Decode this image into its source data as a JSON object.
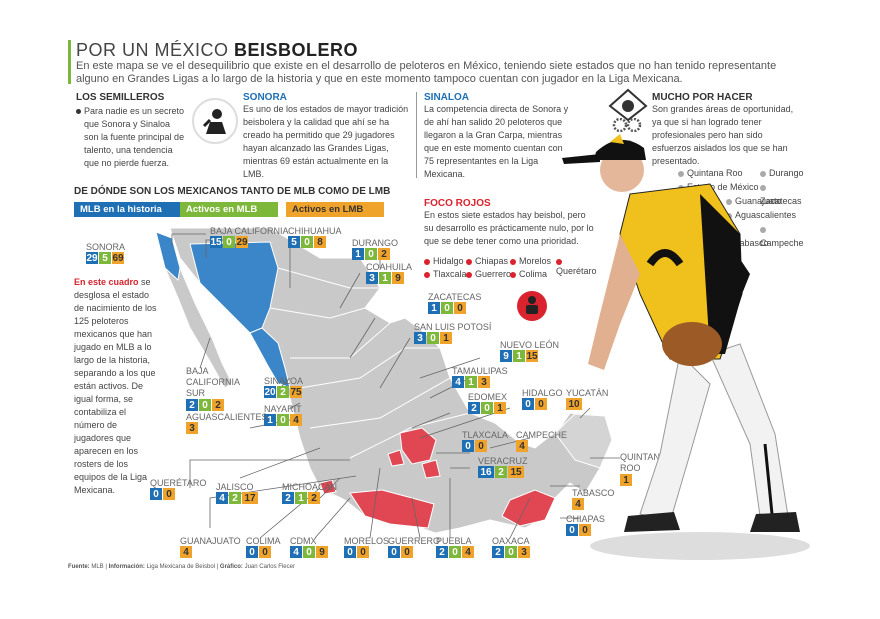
{
  "title": {
    "prefix": "POR UN MÉXICO ",
    "bold": "BEISBOLERO"
  },
  "lead": "En este mapa se ve el desequilibrio que existe en el desarrollo de peloteros en México, teniendo siete estados que no han tenido representante alguno en Grandes Ligas a lo largo de la historia y que en este momento tampoco cuentan con jugador en la Liga Mexicana.",
  "semilleros": {
    "head": "LOS SEMILLEROS",
    "text": "Para nadie es un secreto que Sonora y Sinaloa son la fuente principal de talento, una tendencia que no pierde fuerza."
  },
  "sonora_box": {
    "head": "SONORA",
    "text": "Es uno de los estados de mayor tradición beisbolera y la calidad que ahí se ha creado ha permitido que 29 jugadores hayan alcanzado las Grandes Ligas, mientras 69 están actualmente en la LMB."
  },
  "sinaloa_box": {
    "head": "SINALOA",
    "text": "La competencia directa de Sonora y de ahí han salido 20 peloteros que llegaron a la Gran Carpa, mientras que en este momento cuentan con 75 representantes en la Liga Mexicana."
  },
  "mucho": {
    "head": "MUCHO POR HACER",
    "text": "Son grandes áreas de oportunidad, ya que sí han logrado tener profesionales pero han sido esfuerzos aislados los que se han presentado.",
    "states": [
      "Quintana Roo",
      "Durango",
      "Estado de México",
      "Zacatecas",
      "Guanajuato",
      "Aguascalientes",
      "Campeche",
      "Tabasco"
    ]
  },
  "subhead": "DE DÓNDE SON LOS MEXICANOS TANTO DE MLB COMO DE LMB",
  "legend": {
    "mlb": "MLB en la historia",
    "activos_mlb": "Activos en MLB",
    "activos_lmb": "Activos en LMB"
  },
  "foco": {
    "head": "FOCO ROJOS",
    "text": "En estos siete estados hay beisbol, pero su desarrollo es prácticamente nulo, por lo que se debe tener como una prioridad.",
    "states": [
      "Hidalgo",
      "Chiapas",
      "Morelos",
      "Querétaro",
      "Tlaxcala",
      "Guerrero",
      "Colima"
    ]
  },
  "cuadro": {
    "head": "En este cuadro",
    "text": " se desglosa el estado de nacimiento de los 125 peloteros mexicanos que han jugado en MLB a lo largo de la historia, separando a los que están activos. De igual forma, se contabiliza el número de jugadores que aparecen en los rosters de los equipos de la Liga Mexicana."
  },
  "states": [
    {
      "name": "BAJA CALIFORNIA",
      "mlb": "15",
      "act": "0",
      "lmb": "29"
    },
    {
      "name": "SONORA",
      "mlb": "29",
      "act": "5",
      "lmb": "69"
    },
    {
      "name": "CHIHUAHUA",
      "mlb": "5",
      "act": "0",
      "lmb": "8"
    },
    {
      "name": "DURANGO",
      "mlb": "1",
      "act": "0",
      "lmb": "2"
    },
    {
      "name": "COAHUILA",
      "mlb": "3",
      "act": "1",
      "lmb": "9"
    },
    {
      "name": "ZACATECAS",
      "mlb": "1",
      "act": "0",
      "lmb": "0"
    },
    {
      "name": "SAN LUIS POTOSÍ",
      "mlb": "3",
      "act": "0",
      "lmb": "1"
    },
    {
      "name": "NUEVO LEÓN",
      "mlb": "9",
      "act": "1",
      "lmb": "15"
    },
    {
      "name": "TAMAULIPAS",
      "mlb": "4",
      "act": "1",
      "lmb": "3"
    },
    {
      "name": "BAJA CALIFORNIA SUR",
      "mlb": "2",
      "act": "0",
      "lmb": "2"
    },
    {
      "name": "SINALOA",
      "mlb": "20",
      "act": "2",
      "lmb": "75"
    },
    {
      "name": "NAYARIT",
      "mlb": "1",
      "act": "0",
      "lmb": "4"
    },
    {
      "name": "AGUASCALIENTES",
      "mlb": "",
      "act": "",
      "lmb": "3"
    },
    {
      "name": "EDOMEX",
      "mlb": "2",
      "act": "0",
      "lmb": "1"
    },
    {
      "name": "HIDALGO",
      "mlb": "0",
      "act": "",
      "lmb": "0"
    },
    {
      "name": "YUCATÁN",
      "mlb": "",
      "act": "",
      "lmb": "10"
    },
    {
      "name": "TLAXCALA",
      "mlb": "0",
      "act": "",
      "lmb": "0"
    },
    {
      "name": "CAMPECHE",
      "mlb": "",
      "act": "",
      "lmb": "4"
    },
    {
      "name": "VERACRUZ",
      "mlb": "16",
      "act": "2",
      "lmb": "15"
    },
    {
      "name": "QUINTANA ROO",
      "mlb": "",
      "act": "",
      "lmb": "1"
    },
    {
      "name": "QUERÉTARO",
      "mlb": "0",
      "act": "",
      "lmb": "0"
    },
    {
      "name": "JALISCO",
      "mlb": "4",
      "act": "2",
      "lmb": "17"
    },
    {
      "name": "MICHOACÁN",
      "mlb": "2",
      "act": "1",
      "lmb": "2"
    },
    {
      "name": "TABASCO",
      "mlb": "",
      "act": "",
      "lmb": "4"
    },
    {
      "name": "CHIAPAS",
      "mlb": "0",
      "act": "",
      "lmb": "0"
    },
    {
      "name": "GUANAJUATO",
      "mlb": "",
      "act": "",
      "lmb": "4"
    },
    {
      "name": "COLIMA",
      "mlb": "0",
      "act": "",
      "lmb": "0"
    },
    {
      "name": "CDMX",
      "mlb": "4",
      "act": "0",
      "lmb": "9"
    },
    {
      "name": "MORELOS",
      "mlb": "0",
      "act": "",
      "lmb": "0"
    },
    {
      "name": "GUERRERO",
      "mlb": "0",
      "act": "",
      "lmb": "0"
    },
    {
      "name": "PUEBLA",
      "mlb": "2",
      "act": "0",
      "lmb": "4"
    },
    {
      "name": "OAXACA",
      "mlb": "2",
      "act": "0",
      "lmb": "3"
    }
  ],
  "footer": {
    "fuente_label": "Fuente:",
    "fuente": "MLB",
    "info_label": "Información:",
    "info": "Liga Mexicana de Beisbol",
    "graf_label": "Gráfico:",
    "graf": "Juan Carlos Flecer"
  },
  "colors": {
    "mlb": "#1f6fb5",
    "activos_mlb": "#7db83a",
    "activos_lmb": "#f0a32a",
    "foco": "#d9232e"
  },
  "icons": [
    "player-icon",
    "baseball-diamond-icon",
    "gears-icon",
    "red-alert-icon"
  ]
}
